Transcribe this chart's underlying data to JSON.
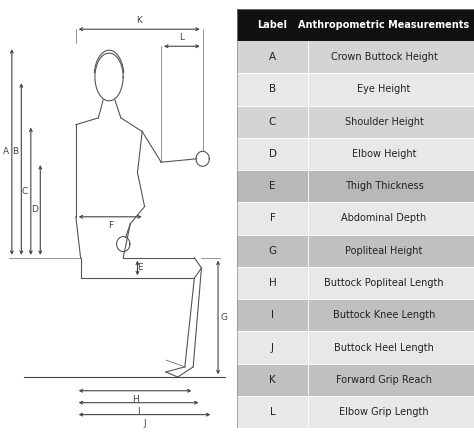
{
  "table_labels": [
    "A",
    "B",
    "C",
    "D",
    "E",
    "F",
    "G",
    "H",
    "I",
    "J",
    "K",
    "L"
  ],
  "table_measurements": [
    "Crown Buttock Height",
    "Eye Height",
    "Shoulder Height",
    "Elbow Height",
    "Thigh Thickness",
    "Abdominal Depth",
    "Popliteal Height",
    "Buttock Popliteal Length",
    "Buttock Knee Length",
    "Buttock Heel Length",
    "Forward Grip Reach",
    "Elbow Grip Length"
  ],
  "row_colors": [
    "#d4d4d4",
    "#e8e8e8",
    "#d4d4d4",
    "#e8e8e8",
    "#b8b8b8",
    "#e8e8e8",
    "#c0c0c0",
    "#e8e8e8",
    "#c0c0c0",
    "#e8e8e8",
    "#c0c0c0",
    "#e8e8e8"
  ],
  "header_bg": "#111111",
  "header_fg": "#ffffff",
  "fig_bg": "#ffffff",
  "line_color": "#555555",
  "lw": 0.8
}
